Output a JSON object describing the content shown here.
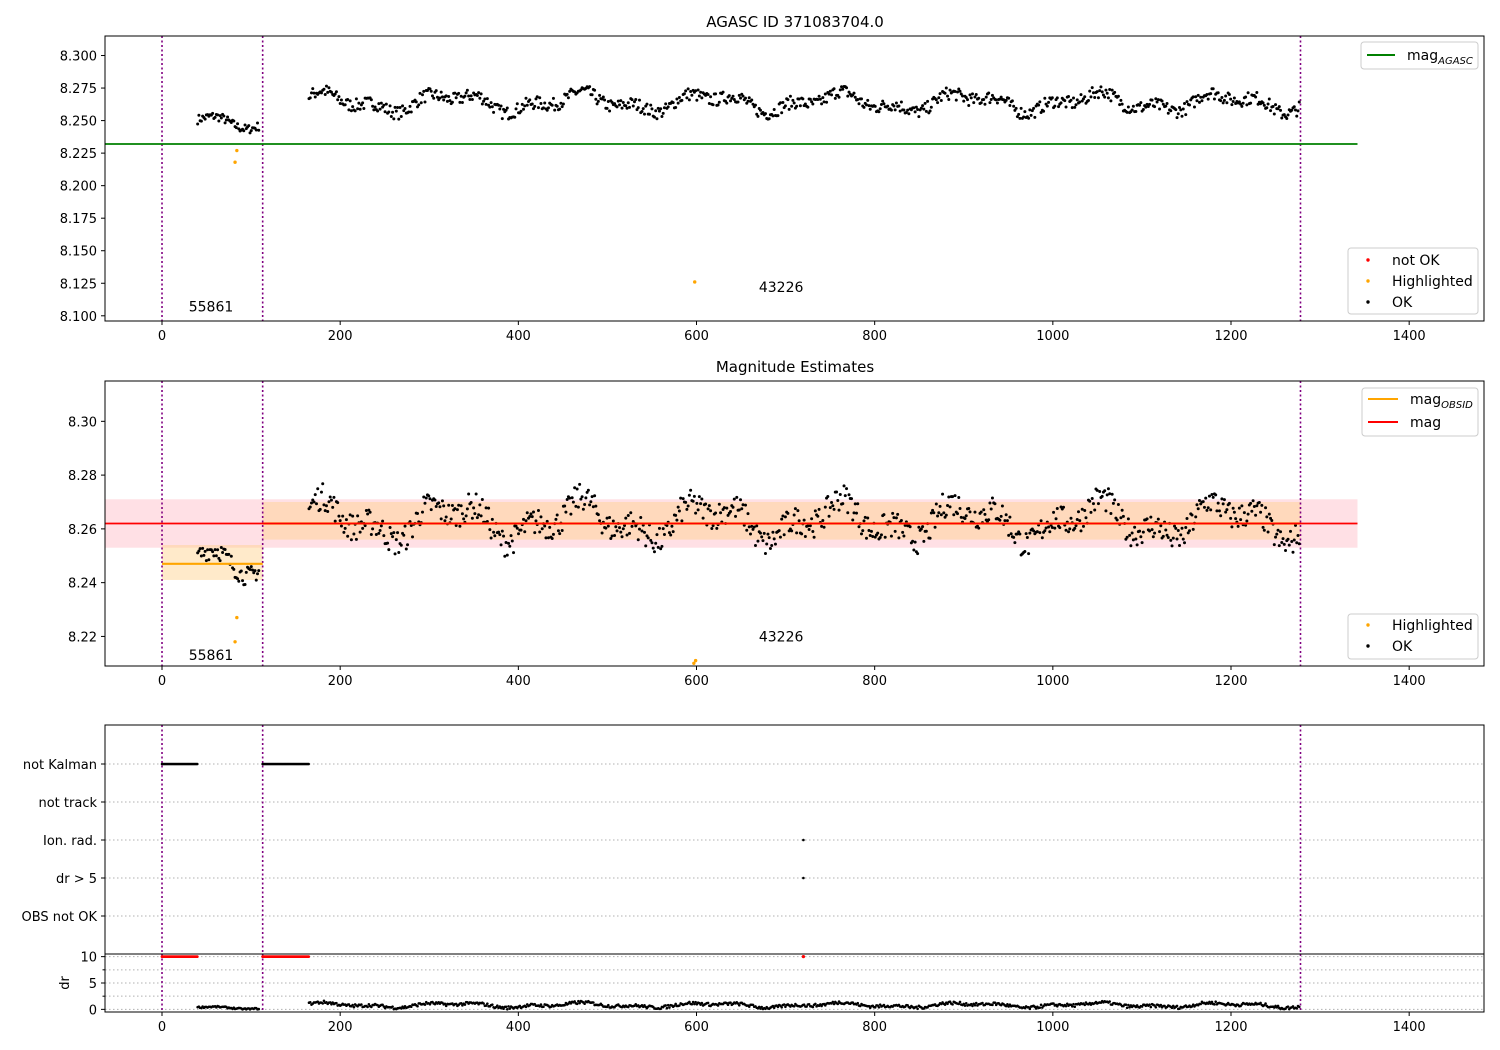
{
  "chart_data": [
    {
      "type": "scatter",
      "title": "AGASC ID 371083704.0",
      "xlim": [
        -64,
        1484
      ],
      "ylim": [
        8.096,
        8.315
      ],
      "x_ticks": [
        0,
        200,
        400,
        600,
        800,
        1000,
        1200,
        1400
      ],
      "y_ticks": [
        8.1,
        8.125,
        8.15,
        8.175,
        8.2,
        8.225,
        8.25,
        8.275,
        8.3
      ],
      "y_tick_labels": [
        "8.100",
        "8.125",
        "8.150",
        "8.175",
        "8.200",
        "8.225",
        "8.250",
        "8.275",
        "8.300"
      ],
      "obsid_boundaries": [
        0,
        113,
        1278
      ],
      "annotations": [
        {
          "text": "55861",
          "x": 55,
          "y": 8.107
        },
        {
          "text": "43226",
          "x": 695,
          "y": 8.122
        }
      ],
      "reference_lines": [
        {
          "name": "mag_AGASC",
          "y": 8.232,
          "x_range": [
            -64,
            1342
          ],
          "color": "#008000"
        }
      ],
      "series": [
        {
          "name": "not OK",
          "color": "#ff0000",
          "points": []
        },
        {
          "name": "Highlighted",
          "color": "#ffa500",
          "points": [
            [
              82,
              8.218
            ],
            [
              84,
              8.227
            ],
            [
              598,
              8.126
            ]
          ]
        },
        {
          "name": "OK",
          "color": "#000000",
          "segments": [
            {
              "x_start": 40,
              "x_end": 110,
              "center": 8.249,
              "amplitude": 0.007
            },
            {
              "x_start": 165,
              "x_end": 1278,
              "center": 8.264,
              "amplitude": 0.01
            }
          ]
        }
      ],
      "legend_upper": {
        "position": "upper-right",
        "entries": [
          {
            "label": "mag",
            "subscript": "AGASC",
            "color": "#008000"
          }
        ]
      },
      "legend_lower": {
        "position": "lower-right",
        "entries": [
          {
            "label": "not OK",
            "color": "#ff0000"
          },
          {
            "label": "Highlighted",
            "color": "#ffa500"
          },
          {
            "label": "OK",
            "color": "#000000"
          }
        ]
      }
    },
    {
      "type": "scatter",
      "title": "Magnitude Estimates",
      "xlim": [
        -64,
        1484
      ],
      "ylim": [
        8.209,
        8.315
      ],
      "x_ticks": [
        0,
        200,
        400,
        600,
        800,
        1000,
        1200,
        1400
      ],
      "y_ticks": [
        8.22,
        8.24,
        8.26,
        8.28,
        8.3
      ],
      "y_tick_labels": [
        "8.22",
        "8.24",
        "8.26",
        "8.28",
        "8.30"
      ],
      "obsid_boundaries": [
        0,
        113,
        1278
      ],
      "annotations": [
        {
          "text": "55861",
          "x": 55,
          "y": 8.213
        },
        {
          "text": "43226",
          "x": 695,
          "y": 8.22
        }
      ],
      "mag_band": {
        "center": 8.262,
        "lower": 8.253,
        "upper": 8.271,
        "x_range": [
          -64,
          1342
        ],
        "line_color": "#ff0000",
        "band_color": "#ffd5dc"
      },
      "obsid_mags": [
        {
          "x_range": [
            0,
            113
          ],
          "mag": 8.247,
          "lower": 8.241,
          "upper": 8.254
        },
        {
          "x_range": [
            113,
            1278
          ],
          "mag": 8.262,
          "lower": 8.256,
          "upper": 8.27
        }
      ],
      "series": [
        {
          "name": "Highlighted",
          "color": "#ffa500",
          "points": [
            [
              82,
              8.218
            ],
            [
              84,
              8.227
            ],
            [
              597,
              8.21
            ],
            [
              599,
              8.211
            ]
          ]
        },
        {
          "name": "OK",
          "color": "#000000",
          "segments": [
            {
              "x_start": 40,
              "x_end": 110,
              "center": 8.248,
              "amplitude": 0.007
            },
            {
              "x_start": 165,
              "x_end": 1278,
              "center": 8.263,
              "amplitude": 0.01
            }
          ]
        }
      ],
      "legend_upper": {
        "position": "upper-right",
        "entries": [
          {
            "label": "mag",
            "subscript": "OBSID",
            "color": "#ffa500"
          },
          {
            "label": "mag",
            "subscript": "",
            "color": "#ff0000"
          }
        ]
      },
      "legend_lower": {
        "position": "lower-right",
        "entries": [
          {
            "label": "Highlighted",
            "color": "#ffa500"
          },
          {
            "label": "OK",
            "color": "#000000"
          }
        ]
      }
    },
    {
      "type": "scatter",
      "title": "",
      "xlim": [
        -64,
        1484
      ],
      "flag_rows": [
        "not Kalman",
        "not track",
        "Ion. rad.",
        "dr > 5",
        "OBS not OK"
      ],
      "flag_points": [
        {
          "row": "not Kalman",
          "x_ranges": [
            [
              0,
              40
            ],
            [
              113,
              165
            ]
          ]
        },
        {
          "row": "Ion. rad.",
          "x": [
            720
          ]
        },
        {
          "row": "dr > 5",
          "x": [
            720
          ]
        }
      ],
      "obsid_boundaries": [
        0,
        113,
        1278
      ]
    },
    {
      "type": "scatter",
      "title": "",
      "ylabel": "dr",
      "xlim": [
        -64,
        1484
      ],
      "ylim": [
        -0.5,
        10.5
      ],
      "x_ticks": [
        0,
        200,
        400,
        600,
        800,
        1000,
        1200,
        1400
      ],
      "y_ticks": [
        0,
        5,
        10
      ],
      "obsid_boundaries": [
        0,
        113,
        1278
      ],
      "series": [
        {
          "name": "dr > 5",
          "color": "#ff0000",
          "x_ranges": [
            [
              0,
              40
            ],
            [
              113,
              165
            ]
          ],
          "x": [
            720
          ],
          "y": 10
        },
        {
          "name": "dr",
          "color": "#000000",
          "segments": [
            {
              "x_start": 40,
              "x_end": 110,
              "center": 0.3,
              "amplitude": 0.3
            },
            {
              "x_start": 165,
              "x_end": 1278,
              "center": 0.8,
              "amplitude": 0.6
            }
          ]
        }
      ]
    }
  ]
}
